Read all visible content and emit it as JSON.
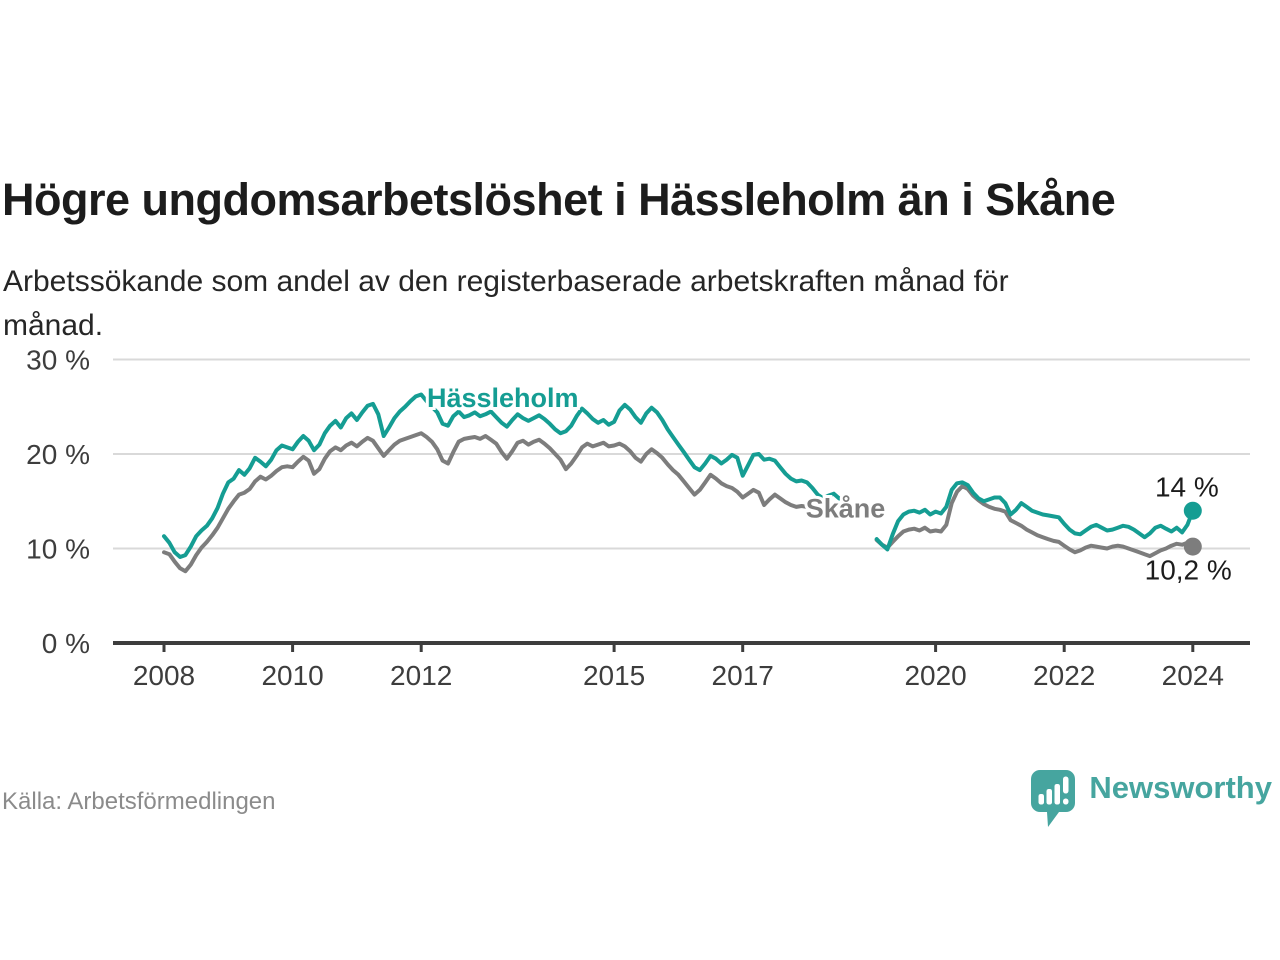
{
  "header": {
    "title": "Högre ungdomsarbetslöshet i Hässleholm än i Skåne",
    "subtitle_line1": "Arbetssökande som andel av den registerbaserade arbetskraften månad för",
    "subtitle_line2": "månad."
  },
  "footer": {
    "source": "Källa: Arbetsförmedlingen",
    "brand": "Newsworthy"
  },
  "colors": {
    "accent_teal": "#159d93",
    "line_gray": "#7d7d7d",
    "grid": "#d9d9d9",
    "axis": "#3d3d3d",
    "tick_label": "#3d3d3d",
    "value_label": "#1c1c1c",
    "logo_teal": "#46a59f"
  },
  "chart_data": {
    "type": "line",
    "unit": "%",
    "frequency": "monthly",
    "x_start": "2008-01",
    "x_end": "2024-01",
    "grid": true,
    "ylim": [
      0,
      31.5
    ],
    "y_ticks": [
      0,
      10,
      20,
      30
    ],
    "y_tick_labels": [
      "0 %",
      "10 %",
      "20 %",
      "30 %"
    ],
    "x_tick_years": [
      2008,
      2010,
      2012,
      2015,
      2017,
      2020,
      2022,
      2024
    ],
    "x_tick_labels": [
      "2008",
      "2010",
      "2012",
      "2015",
      "2017",
      "2020",
      "2022",
      "2024"
    ],
    "series": [
      {
        "name": "Hässleholm",
        "color": "#159d93",
        "end_label": "14 %",
        "end_value": 14,
        "label_pos": {
          "year": 2012.09,
          "pct": 25.0
        },
        "values": [
          11.3,
          10.6,
          9.6,
          9.1,
          9.3,
          10.2,
          11.3,
          11.9,
          12.4,
          13.2,
          14.3,
          15.8,
          17,
          17.4,
          18.3,
          17.8,
          18.5,
          19.6,
          19.2,
          18.7,
          19.4,
          20.4,
          20.9,
          20.7,
          20.5,
          21.3,
          21.9,
          21.4,
          20.4,
          21,
          22.2,
          23,
          23.5,
          22.8,
          23.8,
          24.3,
          23.6,
          24.4,
          25.1,
          25.3,
          24.2,
          21.9,
          22.8,
          23.8,
          24.5,
          25,
          25.6,
          26.1,
          26.3,
          25.6,
          25,
          24.4,
          23.2,
          23,
          24,
          24.5,
          23.9,
          24.1,
          24.4,
          24,
          24.2,
          24.5,
          23.9,
          23.3,
          22.9,
          23.6,
          24.2,
          23.8,
          23.5,
          23.8,
          24.1,
          23.7,
          23.2,
          22.6,
          22.2,
          22.4,
          23,
          24,
          24.8,
          24.3,
          23.7,
          23.3,
          23.6,
          23.1,
          23.4,
          24.6,
          25.2,
          24.7,
          23.9,
          23.3,
          24.3,
          24.9,
          24.4,
          23.6,
          22.6,
          21.8,
          21,
          20.2,
          19.4,
          18.6,
          18.3,
          19,
          19.8,
          19.5,
          19,
          19.4,
          19.9,
          19.6,
          17.7,
          18.8,
          19.9,
          20,
          19.4,
          19.5,
          19.3,
          18.6,
          17.9,
          17.4,
          17.1,
          17.2,
          17,
          16.4,
          15.7,
          15.3,
          15.6,
          15.8,
          15.3,
          15,
          null,
          null,
          null,
          null,
          null,
          11,
          10.4,
          9.9,
          11.5,
          12.9,
          13.6,
          13.9,
          14,
          13.8,
          14.1,
          13.6,
          13.9,
          13.7,
          14.4,
          16.2,
          16.9,
          17,
          16.7,
          15.9,
          15.3,
          15,
          15.2,
          15.4,
          15.4,
          14.8,
          13.6,
          14.1,
          14.8,
          14.4,
          14,
          13.8,
          13.6,
          13.5,
          13.4,
          13.3,
          12.6,
          12,
          11.6,
          11.5,
          11.9,
          12.3,
          12.5,
          12.2,
          11.9,
          12,
          12.2,
          12.4,
          12.3,
          12,
          11.6,
          11.2,
          11.6,
          12.2,
          12.4,
          12.1,
          11.8,
          12.2,
          11.7,
          12.5,
          14
        ]
      },
      {
        "name": "Skåne",
        "color": "#7d7d7d",
        "end_label": "10,2 %",
        "end_value": 10.2,
        "label_pos": {
          "year": 2017.98,
          "pct": 13.3
        },
        "values": [
          9.6,
          9.4,
          8.6,
          7.9,
          7.6,
          8.3,
          9.3,
          10.1,
          10.7,
          11.4,
          12.2,
          13.2,
          14.2,
          15,
          15.7,
          15.9,
          16.3,
          17.1,
          17.6,
          17.3,
          17.7,
          18.2,
          18.6,
          18.7,
          18.6,
          19.2,
          19.7,
          19.3,
          17.9,
          18.4,
          19.5,
          20.3,
          20.7,
          20.4,
          20.9,
          21.2,
          20.8,
          21.3,
          21.7,
          21.4,
          20.6,
          19.8,
          20.4,
          21,
          21.4,
          21.6,
          21.8,
          22,
          22.2,
          21.8,
          21.3,
          20.5,
          19.3,
          19,
          20.2,
          21.3,
          21.6,
          21.7,
          21.8,
          21.6,
          21.9,
          21.5,
          21.1,
          20.2,
          19.5,
          20.3,
          21.2,
          21.4,
          21,
          21.3,
          21.5,
          21.1,
          20.6,
          20,
          19.4,
          18.4,
          19,
          19.8,
          20.7,
          21.1,
          20.8,
          21,
          21.2,
          20.8,
          20.9,
          21.1,
          20.8,
          20.3,
          19.6,
          19.2,
          20,
          20.5,
          20.1,
          19.6,
          18.9,
          18.3,
          17.8,
          17.1,
          16.4,
          15.7,
          16.2,
          17,
          17.8,
          17.4,
          16.9,
          16.6,
          16.4,
          16,
          15.4,
          15.8,
          16.2,
          15.9,
          14.6,
          15.2,
          15.7,
          15.3,
          14.9,
          14.6,
          14.4,
          14.5,
          14.4,
          14.2,
          14,
          14.2,
          14.4,
          14.3,
          14.1,
          14,
          null,
          null,
          null,
          null,
          null,
          10.9,
          10.4,
          10.1,
          10.7,
          11.3,
          11.8,
          12,
          12.1,
          11.9,
          12.2,
          11.8,
          11.9,
          11.8,
          12.5,
          14.8,
          16,
          16.6,
          16.3,
          15.6,
          15.1,
          14.7,
          14.4,
          14.2,
          14.1,
          13.9,
          13,
          12.7,
          12.4,
          12,
          11.7,
          11.4,
          11.2,
          11,
          10.8,
          10.7,
          10.3,
          9.9,
          9.6,
          9.8,
          10.1,
          10.3,
          10.2,
          10.1,
          10,
          10.2,
          10.3,
          10.2,
          10,
          9.8,
          9.6,
          9.4,
          9.2,
          9.5,
          9.8,
          10,
          10.3,
          10.5,
          10.4,
          10.6,
          10.2
        ]
      }
    ]
  }
}
